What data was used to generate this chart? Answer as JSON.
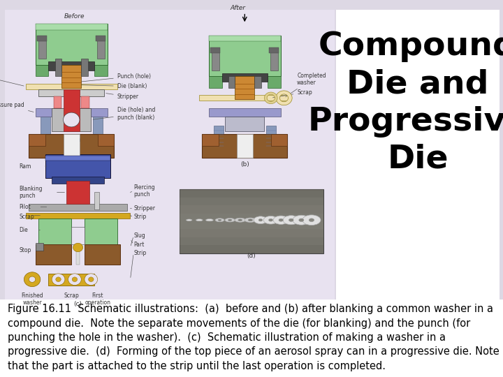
{
  "title_lines": [
    "Compound",
    "Die and",
    "Progressive",
    "Die"
  ],
  "caption": "Figure 16.11  Schematic illustrations:  (a)  before and (b) after blanking a common washer in a compound die.  Note the separate movements of the die (for blanking) and the punch (for punching the hole in the washer).  (c)  Schematic illustration of making a washer in a progressive die.  (d)  Forming of the top piece of an aerosol spray can in a progressive die. Note that the part is attached to the strip until the last operation is completed.",
  "bg_color": "#ddd8e4",
  "title_fontsize": 34,
  "caption_fontsize": 10.5,
  "title_color": "#000000",
  "caption_color": "#000000",
  "green_top": "#8fcc8f",
  "green_mid": "#6aaa6a",
  "brown": "#8B5A2B",
  "red_punch": "#cc3333",
  "orange_coil": "#cc8833",
  "blue_spring": "#8899bb",
  "gray_die": "#bbbbbb",
  "strip_color": "#f0e0b0",
  "dark_gray": "#555555",
  "gold": "#d4a820",
  "photo_bg": "#888880"
}
